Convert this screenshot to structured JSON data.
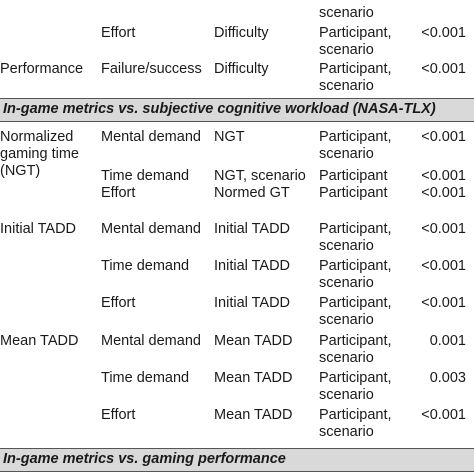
{
  "top_rows": [
    {
      "c1": "",
      "c2": "",
      "c3": "",
      "c4": "scenario",
      "c5": ""
    },
    {
      "c1": "",
      "c2": "Effort",
      "c3": "Difficulty",
      "c4": "Participant,\nscenario",
      "c5": "<0.001"
    },
    {
      "c1": "Performance",
      "c2": "Failure/success",
      "c3": "Difficulty",
      "c4": "Participant,\nscenario",
      "c5": "<0.001"
    }
  ],
  "section1": "In-game metrics vs. subjective cognitive workload (NASA-TLX)",
  "rows": [
    {
      "c1": "Normalized\ngaming time\n(NGT)",
      "c2": "Mental demand",
      "c3": "NGT",
      "c4": "Participant,\nscenario",
      "c5": "<0.001"
    },
    {
      "c1": "",
      "c2": "Time demand",
      "c3": "NGT, scenario",
      "c4": "Participant",
      "c5": "<0.001"
    },
    {
      "c1": "",
      "c2": "Effort",
      "c3": "Normed GT",
      "c4": "Participant",
      "c5": "<0.001"
    },
    {
      "c1": "Initial TADD",
      "c2": "Mental demand",
      "c3": "Initial TADD",
      "c4": "Participant,\nscenario",
      "c5": "<0.001"
    },
    {
      "c1": "",
      "c2": "Time demand",
      "c3": "Initial TADD",
      "c4": "Participant,\nscenario",
      "c5": "<0.001"
    },
    {
      "c1": "",
      "c2": "Effort",
      "c3": "Initial TADD",
      "c4": "Participant,\nscenario",
      "c5": "<0.001"
    },
    {
      "c1": "Mean TADD",
      "c2": "Mental demand",
      "c3": "Mean TADD",
      "c4": "Participant,\nscenario",
      "c5": "0.001"
    },
    {
      "c1": "",
      "c2": "Time demand",
      "c3": "Mean TADD",
      "c4": "Participant,\nscenario",
      "c5": "0.003"
    },
    {
      "c1": "",
      "c2": "Effort",
      "c3": "Mean TADD",
      "c4": "Participant,\nscenario",
      "c5": "<0.001"
    }
  ],
  "section2": "In-game metrics vs. gaming performance"
}
